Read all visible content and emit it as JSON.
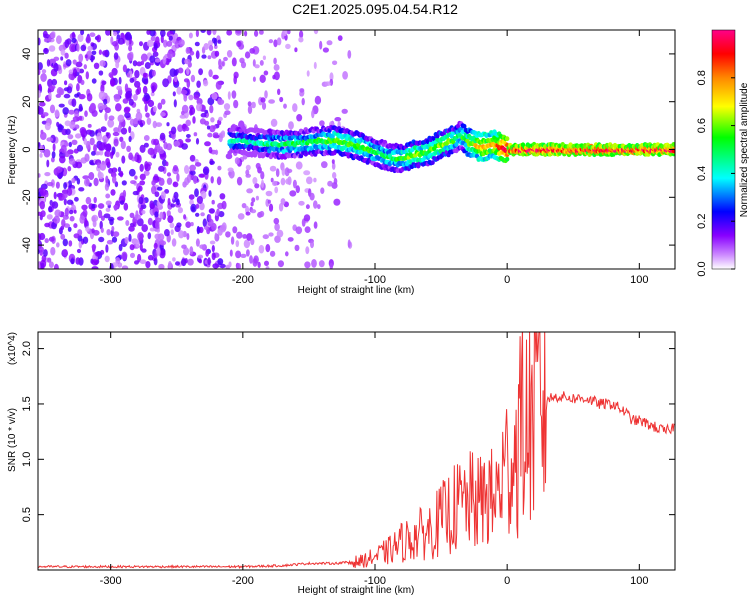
{
  "figure_title": "C2E1.2025.095.04.54.R12",
  "chart_data": [
    {
      "type": "heatmap",
      "title": "C2E1.2025.095.04.54.R12",
      "xlabel": "Height of straight line (km)",
      "ylabel": "Frequency (Hz)",
      "xlim": [
        -355,
        127
      ],
      "ylim": [
        -50,
        50
      ],
      "x_ticks": [
        -300,
        -200,
        -100,
        0,
        100
      ],
      "y_ticks": [
        -40,
        -20,
        0,
        20,
        40
      ],
      "colorbar": {
        "label": "Normalized spectral amplitude",
        "range": [
          0,
          1
        ],
        "ticks": [
          0.0,
          0.2,
          0.4,
          0.6,
          0.8
        ],
        "colors": [
          "#ffffff",
          "#8800ff",
          "#0000ff",
          "#00ffff",
          "#00ff00",
          "#ffff00",
          "#ff8800",
          "#ff0000",
          "#ff0088"
        ]
      },
      "noise_region_x": [
        -355,
        -118
      ],
      "ridge": {
        "x": [
          -210,
          -190,
          -170,
          -150,
          -130,
          -110,
          -100,
          -90,
          -80,
          -70,
          -60,
          -50,
          -40,
          -35,
          -30,
          -20,
          -10,
          0,
          20,
          60,
          100,
          127
        ],
        "frequency": [
          4,
          3,
          2,
          3,
          4,
          1,
          -1,
          -3,
          -4,
          -2,
          -1,
          2,
          4,
          6,
          3,
          1,
          2,
          0,
          0,
          0,
          0,
          0
        ],
        "amplitude": [
          0.45,
          0.4,
          0.5,
          0.5,
          0.55,
          0.55,
          0.5,
          0.5,
          0.55,
          0.6,
          0.55,
          0.6,
          0.55,
          0.5,
          0.6,
          0.75,
          0.75,
          0.95,
          0.95,
          0.95,
          0.95,
          0.95
        ]
      },
      "grid": false
    },
    {
      "type": "line",
      "xlabel": "Height of straight line (km)",
      "ylabel": "SNR (10 * v/v)",
      "y_multiplier": "(x10^4)",
      "xlim": [
        -355,
        127
      ],
      "ylim": [
        0,
        2.15
      ],
      "x_ticks": [
        -300,
        -200,
        -100,
        0,
        100
      ],
      "y_ticks": [
        0.5,
        1.0,
        1.5,
        2.0
      ],
      "color": "#ee3333",
      "grid": false,
      "series": [
        {
          "x": [
            -355,
            -300,
            -250,
            -200,
            -170,
            -150,
            -130,
            -110,
            -100,
            -90,
            -80,
            -70,
            -60,
            -50,
            -40,
            -30,
            -20,
            -15,
            -10,
            -5,
            0,
            5,
            8,
            10,
            15,
            20,
            30,
            40,
            50,
            60,
            70,
            80,
            90,
            95,
            100,
            110,
            120,
            127
          ],
          "y": [
            0.03,
            0.03,
            0.03,
            0.03,
            0.04,
            0.06,
            0.06,
            0.08,
            0.12,
            0.17,
            0.25,
            0.3,
            0.35,
            0.45,
            0.55,
            0.62,
            0.6,
            0.7,
            0.6,
            0.8,
            0.95,
            1.05,
            1.1,
            1.4,
            1.3,
            1.45,
            1.55,
            1.57,
            1.55,
            1.55,
            1.5,
            1.5,
            1.42,
            1.35,
            1.35,
            1.3,
            1.25,
            1.3
          ]
        }
      ]
    }
  ]
}
